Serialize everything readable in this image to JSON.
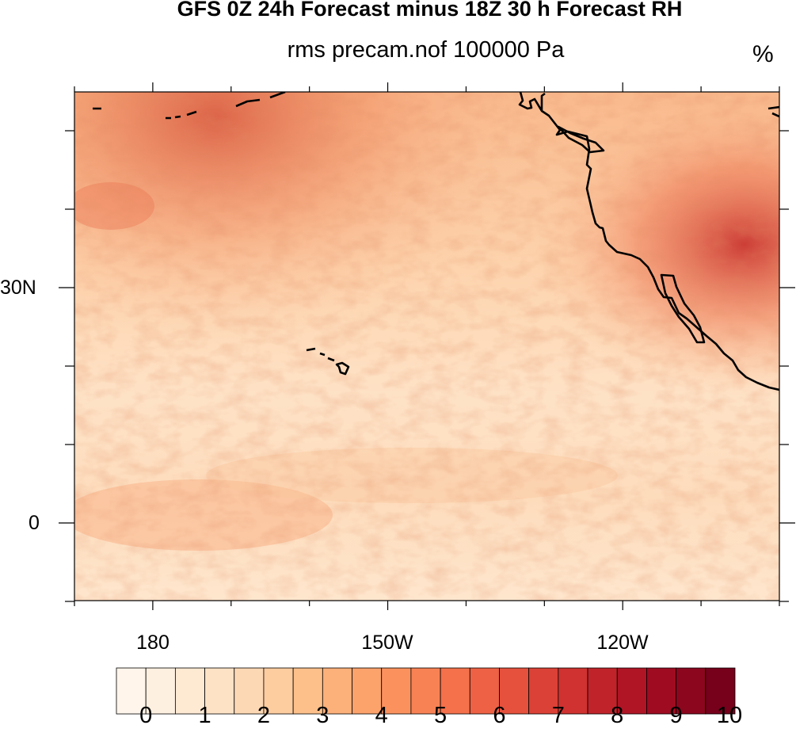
{
  "title": "GFS 0Z 24h Forecast minus 18Z 30 h Forecast RH",
  "subtitle": "rms precam.nof 100000 Pa",
  "units": "%",
  "lat_labels": [
    "30N",
    "0"
  ],
  "lon_labels": [
    "180",
    "150W",
    "120W"
  ],
  "colorbar": {
    "labels": [
      "0",
      "1",
      "2",
      "3",
      "4",
      "5",
      "6",
      "7",
      "8",
      "9",
      "10"
    ],
    "colors": [
      "#fff5eb",
      "#fef0e0",
      "#fee9d3",
      "#fde2c6",
      "#fdd8b4",
      "#fdcd9f",
      "#fdc08b",
      "#fcb07a",
      "#fca26b",
      "#fb925e",
      "#f88254",
      "#f4714b",
      "#ee6144",
      "#e5513d",
      "#db4136",
      "#cf3230",
      "#c1232a",
      "#b01525",
      "#9f0b21",
      "#8c061e",
      "#77001b"
    ],
    "values": [
      0,
      0.5,
      1,
      1.5,
      2,
      2.5,
      3,
      3.5,
      4,
      4.5,
      5,
      5.5,
      6,
      6.5,
      7,
      7.5,
      8,
      8.5,
      9,
      9.5,
      10
    ]
  },
  "map": {
    "projection": "cylindrical-equidistant",
    "lon_range": [
      170,
      260
    ],
    "lat_range": [
      -10,
      55
    ],
    "field": "rms RH difference",
    "coastlines": "black"
  }
}
